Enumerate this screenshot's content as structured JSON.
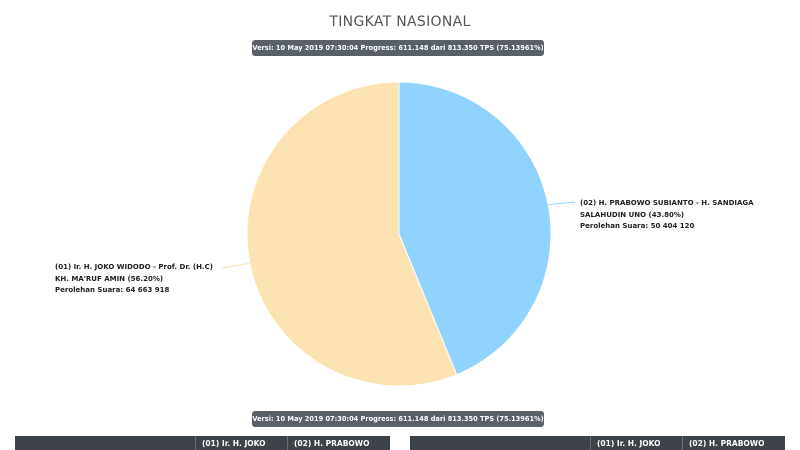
{
  "page": {
    "title": "TINGKAT NASIONAL",
    "version_badge": "Versi: 10 May 2019 07:30:04 Progress: 611.148 dari 813.350 TPS (75.13961%)",
    "version_badge_bottom": "Versi: 10 May 2019 07:30:04 Progress: 611.148 dari 813.350 TPS (75.13961%)"
  },
  "chart_data": {
    "type": "pie",
    "title": "TINGKAT NASIONAL",
    "slices": [
      {
        "label_lines": [
          "(02) H. PRABOWO SUBIANTO - H. SANDIAGA",
          "SALAHUDIN UNO (43.80%)"
        ],
        "vote_line": "Perolehan Suara: 50 404 120",
        "percent": 43.8,
        "votes": 50404120,
        "color": "#8fd3fe"
      },
      {
        "label_lines": [
          "(01) Ir. H. JOKO WIDODO - Prof. Dr. (H.C)",
          "KH. MA'RUF AMIN (56.20%)"
        ],
        "vote_line": "Perolehan Suara: 64 663 918",
        "percent": 56.2,
        "votes": 64663918,
        "color": "#fde3b1"
      }
    ]
  },
  "tables": {
    "left": {
      "col1": "(01) Ir. H. JOKO",
      "col2": "(02) H. PRABOWO"
    },
    "right": {
      "col1": "(01) Ir. H. JOKO",
      "col2": "(02) H. PRABOWO"
    }
  }
}
